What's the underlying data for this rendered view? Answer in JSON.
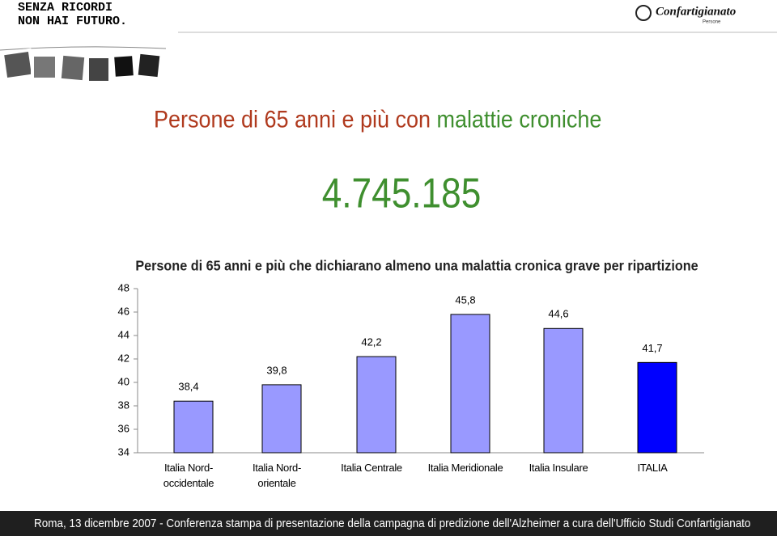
{
  "header": {
    "line1": "SENZA RICORDI",
    "line2": "NON HAI FUTURO.",
    "logo": "Confartigianato",
    "logo_sub": "Persone"
  },
  "headline": {
    "part1": "Persone di 65 anni e più con",
    "part2": "malattie croniche",
    "number": "4.745.185"
  },
  "footer": "Roma, 13 dicembre 2007 - Conferenza stampa di presentazione della campagna di predizione dell'Alzheimer  a cura dell'Ufficio  Studi Confartigianato",
  "chart_data": {
    "type": "bar",
    "title": "Persone di 65 anni e più che dichiarano almeno una malattia cronica grave per ripartizione",
    "categories": [
      "Italia Nord-\noccidentale",
      "Italia Nord-\norientale",
      "Italia Centrale",
      "Italia Meridionale",
      "Italia Insulare",
      "ITALIA"
    ],
    "values": [
      38.4,
      39.8,
      42.2,
      45.8,
      44.6,
      41.7
    ],
    "value_labels": [
      "38,4",
      "39,8",
      "42,2",
      "45,8",
      "44,6",
      "41,7"
    ],
    "colors": [
      "#9999ff",
      "#9999ff",
      "#9999ff",
      "#9999ff",
      "#9999ff",
      "#0000ff"
    ],
    "ylim": [
      34,
      48
    ],
    "yticks": [
      34,
      36,
      38,
      40,
      42,
      44,
      46,
      48
    ],
    "grid": false
  }
}
